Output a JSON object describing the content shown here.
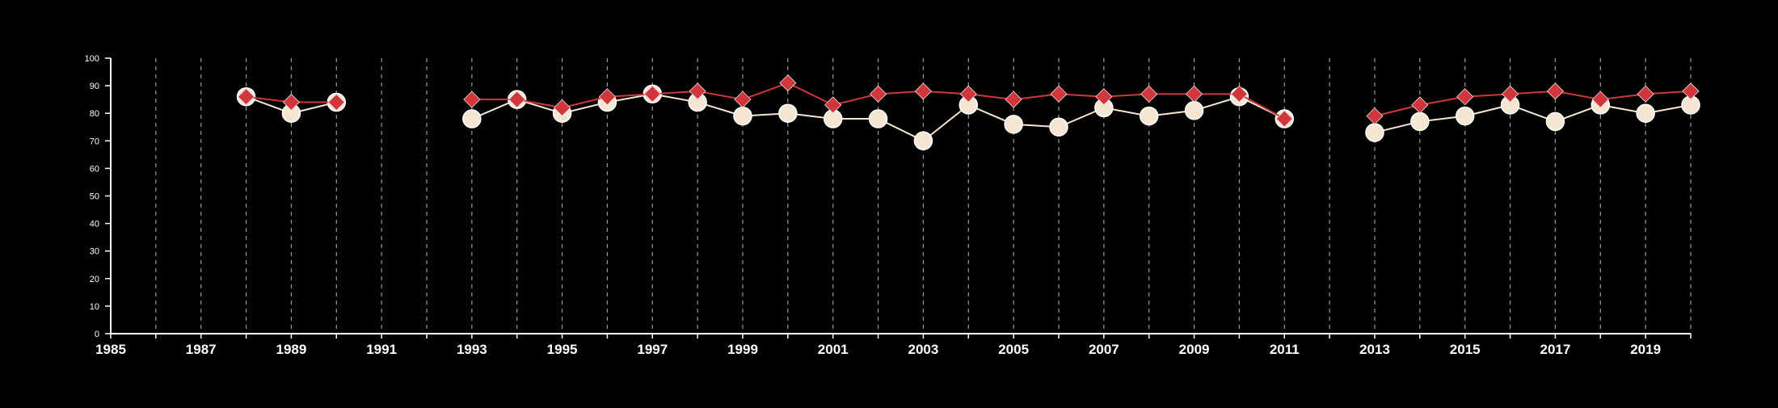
{
  "chart_data": {
    "type": "line",
    "title": "",
    "xlabel": "",
    "ylabel": "",
    "xlim": [
      1985,
      2020
    ],
    "ylim": [
      0,
      100
    ],
    "x_ticks": [
      1985,
      1987,
      1989,
      1991,
      1993,
      1995,
      1997,
      1999,
      2001,
      2003,
      2005,
      2007,
      2009,
      2011,
      2013,
      2015,
      2017,
      2019
    ],
    "x_tick_labels": [
      "1985",
      "1987",
      "1989",
      "1991",
      "1993",
      "1995",
      "1997",
      "1999",
      "2001",
      "2003",
      "2005",
      "2007",
      "2009",
      "2011",
      "2013",
      "2015",
      "2017",
      "2019"
    ],
    "y_ticks": [
      0,
      10,
      20,
      30,
      40,
      50,
      60,
      70,
      80,
      90,
      100
    ],
    "y_tick_labels": [
      "0",
      "10",
      "20",
      "30",
      "40",
      "50",
      "60",
      "70",
      "80",
      "90",
      "100"
    ],
    "grid": "vertical dashed lines at every year",
    "legend": "none",
    "x": [
      1988,
      1989,
      1990,
      1991,
      1992,
      1993,
      1994,
      1995,
      1996,
      1997,
      1998,
      1999,
      2000,
      2001,
      2002,
      2003,
      2004,
      2005,
      2006,
      2007,
      2008,
      2009,
      2010,
      2011,
      2012,
      2013,
      2014,
      2015,
      2016,
      2017,
      2018,
      2019,
      2020
    ],
    "series": [
      {
        "marker": "circle",
        "color": "#f5e6d3",
        "values": [
          86,
          80,
          84,
          null,
          null,
          78,
          85,
          80,
          84,
          87,
          84,
          79,
          80,
          78,
          78,
          70,
          83,
          76,
          75,
          82,
          79,
          81,
          86,
          78,
          null,
          73,
          77,
          79,
          83,
          77,
          83,
          80,
          83
        ]
      },
      {
        "marker": "diamond",
        "color": "#d0363c",
        "values": [
          86,
          84,
          84,
          null,
          null,
          85,
          85,
          82,
          86,
          87,
          88,
          85,
          91,
          83,
          87,
          88,
          87,
          85,
          87,
          86,
          87,
          87,
          87,
          78,
          null,
          79,
          83,
          86,
          87,
          88,
          85,
          87,
          88
        ]
      }
    ]
  }
}
